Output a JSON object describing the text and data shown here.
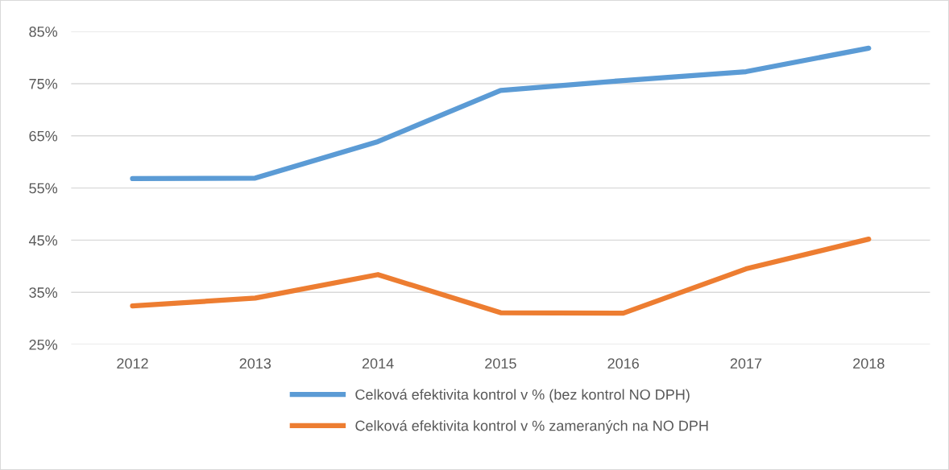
{
  "chart_data": {
    "type": "line",
    "categories": [
      "2012",
      "2013",
      "2014",
      "2015",
      "2016",
      "2017",
      "2018"
    ],
    "series": [
      {
        "name": "Celková efektivita kontrol v % (bez kontrol NO DPH)",
        "color": "#5b9bd5",
        "values": [
          56.8,
          56.9,
          63.9,
          73.7,
          75.6,
          77.3,
          81.8
        ]
      },
      {
        "name": "Celková efektivita kontrol v % zameraných na NO DPH",
        "color": "#ed7d31",
        "values": [
          32.4,
          33.9,
          38.4,
          31.1,
          31.0,
          39.5,
          45.2
        ]
      }
    ],
    "ylim": [
      25,
      85
    ],
    "yticks": [
      {
        "value": 25,
        "label": "25%"
      },
      {
        "value": 35,
        "label": "35%"
      },
      {
        "value": 45,
        "label": "45%"
      },
      {
        "value": 55,
        "label": "55%"
      },
      {
        "value": 65,
        "label": "65%"
      },
      {
        "value": 75,
        "label": "75%"
      },
      {
        "value": 85,
        "label": "85%"
      }
    ],
    "grid": "y",
    "legend": "bottom",
    "marker": "none",
    "line_style": "solid"
  }
}
